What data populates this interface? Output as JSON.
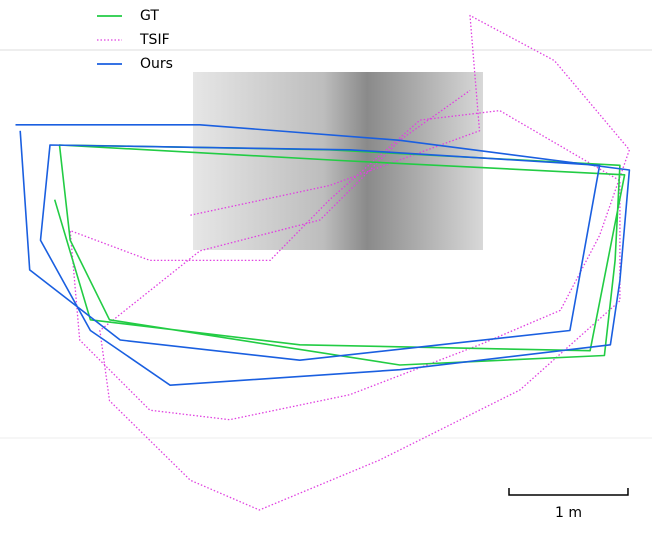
{
  "chart_data": {
    "type": "line",
    "xlim": [
      0,
      5.48
    ],
    "ylim": [
      0,
      4.5
    ],
    "series": [
      {
        "name": "GT",
        "color": "#22cc44",
        "dash": false,
        "x": [
          0.5,
          2.77,
          5.21,
          5.17,
          5.08,
          3.36,
          0.92,
          0.59,
          0.5,
          2.86,
          5.25,
          4.96,
          2.52,
          0.76,
          0.46
        ],
        "values": [
          3.28,
          3.24,
          3.11,
          2.31,
          1.51,
          1.43,
          1.81,
          2.48,
          3.28,
          3.15,
          3.03,
          1.55,
          1.6,
          1.81,
          2.82
        ]
      },
      {
        "name": "TSIF",
        "color": "#e040e0",
        "dash": true,
        "x": [
          1.6,
          2.77,
          4.03,
          3.95,
          4.66,
          5.29,
          5.04,
          4.71,
          4.03,
          2.94,
          1.93,
          1.26,
          0.67,
          0.59,
          1.26,
          2.27,
          2.77,
          3.53,
          4.2,
          5.21,
          5.21,
          4.37,
          3.19,
          2.18,
          1.6,
          0.92,
          0.84,
          1.68,
          2.69,
          3.36,
          3.95
        ],
        "values": [
          2.69,
          2.94,
          3.4,
          4.37,
          3.99,
          3.24,
          2.52,
          1.89,
          1.6,
          1.18,
          0.97,
          1.05,
          1.64,
          2.56,
          2.31,
          2.31,
          2.82,
          3.49,
          3.57,
          2.98,
          1.97,
          1.22,
          0.63,
          0.21,
          0.46,
          1.13,
          1.72,
          2.39,
          2.65,
          3.32,
          3.74
        ]
      },
      {
        "name": "Ours",
        "color": "#1a5fe0",
        "dash": false,
        "x": [
          0.13,
          1.68,
          3.36,
          5.29,
          5.21,
          5.13,
          3.36,
          1.43,
          0.76,
          0.34,
          0.42,
          2.94,
          5.04,
          4.79,
          2.52,
          1.01,
          0.25,
          0.17
        ],
        "values": [
          3.45,
          3.45,
          3.32,
          3.07,
          2.14,
          1.6,
          1.39,
          1.26,
          1.72,
          2.48,
          3.28,
          3.24,
          3.11,
          1.72,
          1.47,
          1.64,
          2.23,
          3.4
        ]
      }
    ],
    "scale_bar": {
      "label": "1 m",
      "length": 1
    }
  }
}
